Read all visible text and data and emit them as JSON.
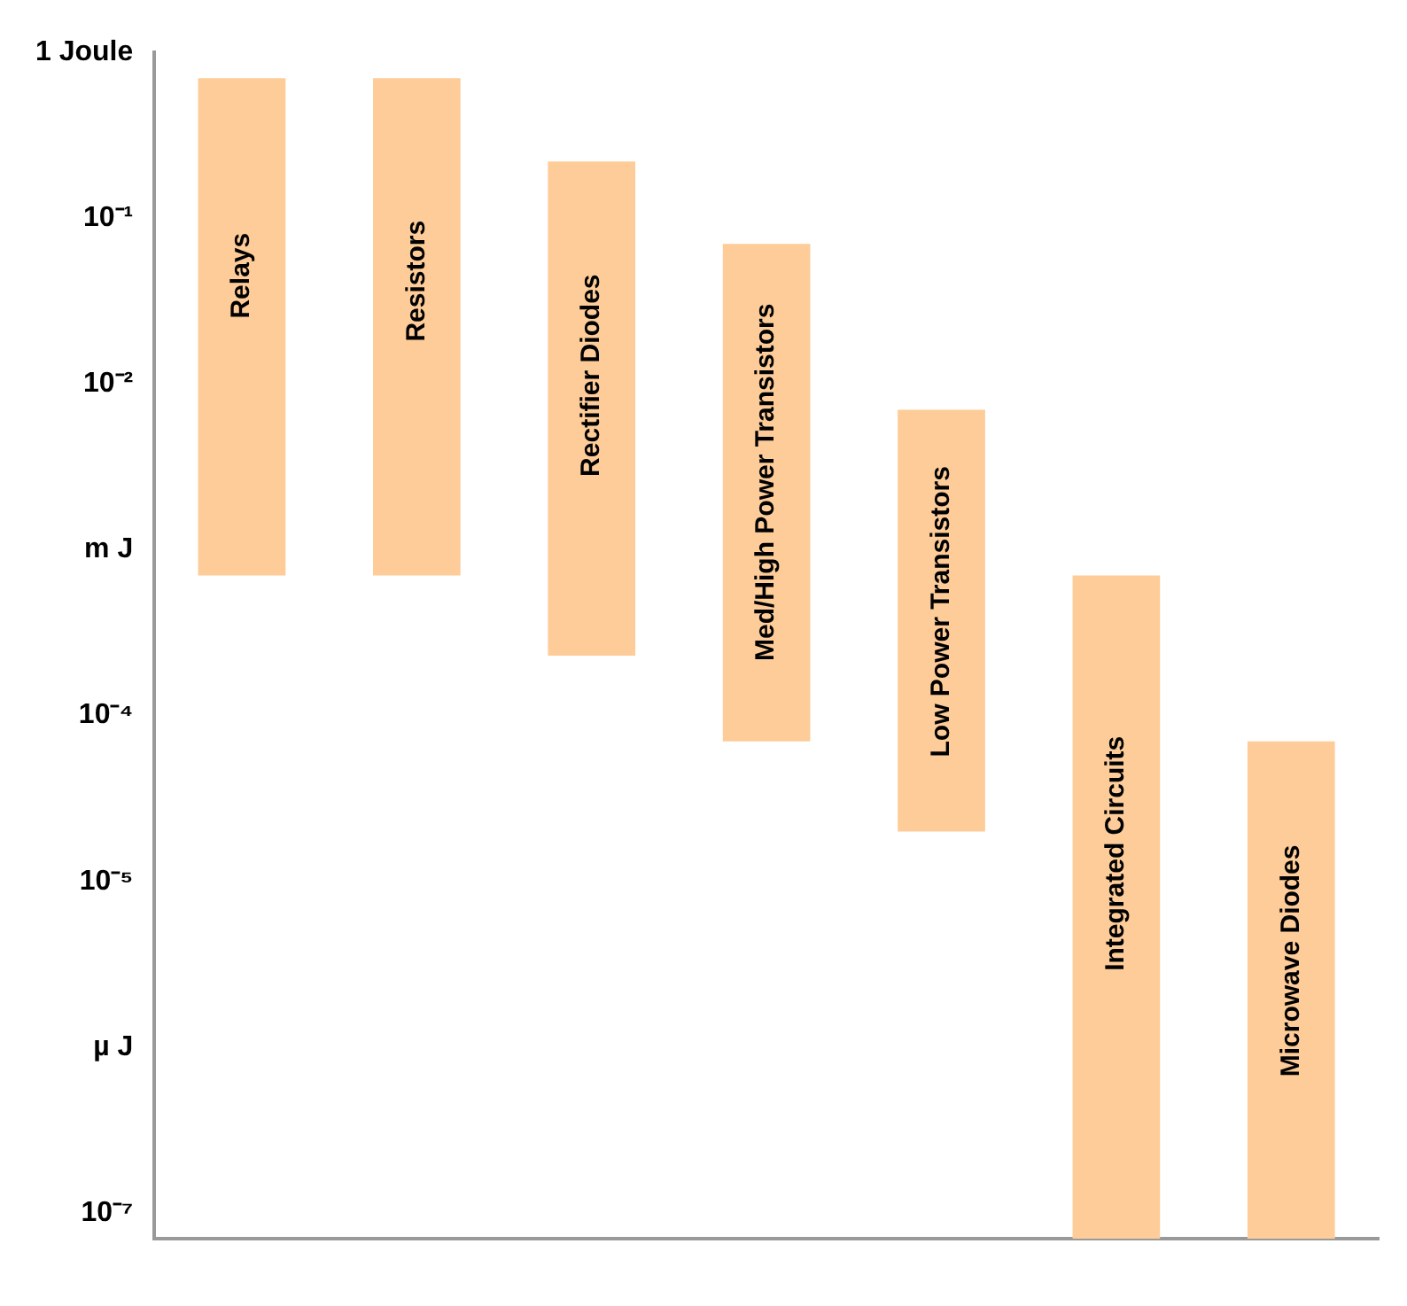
{
  "chart_data": {
    "type": "bar",
    "categories": [
      "Relays",
      "Resistors",
      "Rectifier Diodes",
      "Med/High Power Transistors",
      "Low Power Transistors",
      "Integrated Circuits",
      "Microwave Diodes"
    ],
    "base": [
      0.0007,
      0.0007,
      0.00023,
      7e-05,
      2e-05,
      7e-08,
      7e-08
    ],
    "values": [
      0.6993,
      0.6993,
      0.21977,
      0.06993,
      0.00698,
      0.00069993,
      6.993e-05
    ],
    "color": "#fdcc98",
    "log": "y",
    "ylim": [
      7e-08,
      1
    ],
    "yticks": [
      {
        "value": 1,
        "label": "1 Joule"
      },
      {
        "value": 0.1,
        "label": "10⁻¹"
      },
      {
        "value": 0.01,
        "label": "10⁻²"
      },
      {
        "value": 0.001,
        "label": "m J"
      },
      {
        "value": 0.0001,
        "label": "10⁻⁴"
      },
      {
        "value": 1e-05,
        "label": "10⁻⁵"
      },
      {
        "value": 1e-06,
        "label": "µ J"
      },
      {
        "value": 1e-07,
        "label": "10⁻⁷"
      }
    ],
    "grid": false,
    "legend": false,
    "tick_labels": "y"
  }
}
